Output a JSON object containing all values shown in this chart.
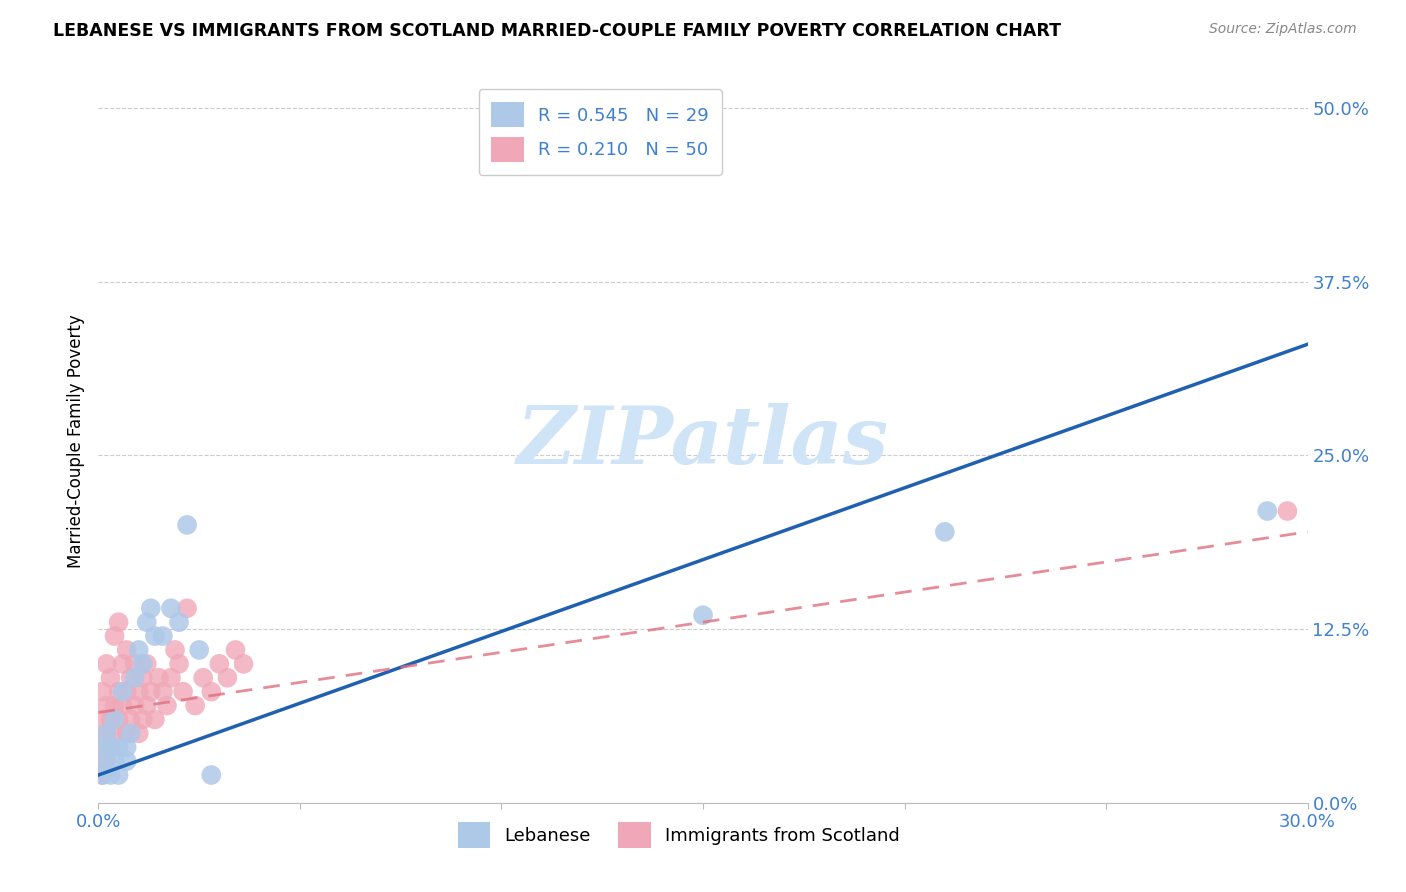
{
  "title": "LEBANESE VS IMMIGRANTS FROM SCOTLAND MARRIED-COUPLE FAMILY POVERTY CORRELATION CHART",
  "source": "Source: ZipAtlas.com",
  "ylabel_label": "Married-Couple Family Poverty",
  "right_yticks": [
    0.0,
    0.125,
    0.25,
    0.375,
    0.5
  ],
  "right_ytick_labels": [
    "0.0%",
    "12.5%",
    "25.0%",
    "37.5%",
    "50.0%"
  ],
  "xmin": 0.0,
  "xmax": 0.3,
  "ymin": 0.0,
  "ymax": 0.52,
  "legend_r1": "R = 0.545",
  "legend_n1": "N = 29",
  "legend_r2": "R = 0.210",
  "legend_n2": "N = 50",
  "legend_label1": "Lebanese",
  "legend_label2": "Immigrants from Scotland",
  "blue_color": "#aec8e8",
  "pink_color": "#f0a8b8",
  "blue_line_color": "#2060b0",
  "pink_line_color": "#e07080",
  "text_color": "#4080d0",
  "watermark_color": "#d0e4f8",
  "blue_x": [
    0.001,
    0.001,
    0.002,
    0.002,
    0.003,
    0.003,
    0.004,
    0.004,
    0.005,
    0.005,
    0.006,
    0.007,
    0.007,
    0.008,
    0.009,
    0.01,
    0.011,
    0.012,
    0.013,
    0.014,
    0.016,
    0.018,
    0.02,
    0.022,
    0.025,
    0.028,
    0.15,
    0.21,
    0.29
  ],
  "blue_y": [
    0.02,
    0.04,
    0.03,
    0.05,
    0.02,
    0.04,
    0.06,
    0.03,
    0.04,
    0.02,
    0.08,
    0.04,
    0.03,
    0.05,
    0.09,
    0.11,
    0.1,
    0.13,
    0.14,
    0.12,
    0.12,
    0.14,
    0.13,
    0.2,
    0.11,
    0.02,
    0.135,
    0.195,
    0.21
  ],
  "pink_x": [
    0.001,
    0.001,
    0.001,
    0.001,
    0.002,
    0.002,
    0.002,
    0.002,
    0.003,
    0.003,
    0.003,
    0.004,
    0.004,
    0.004,
    0.005,
    0.005,
    0.005,
    0.006,
    0.006,
    0.007,
    0.007,
    0.007,
    0.008,
    0.008,
    0.009,
    0.009,
    0.01,
    0.01,
    0.011,
    0.011,
    0.012,
    0.012,
    0.013,
    0.014,
    0.015,
    0.016,
    0.017,
    0.018,
    0.019,
    0.02,
    0.021,
    0.022,
    0.024,
    0.026,
    0.028,
    0.03,
    0.032,
    0.034,
    0.036,
    0.295
  ],
  "pink_y": [
    0.02,
    0.04,
    0.06,
    0.08,
    0.03,
    0.05,
    0.07,
    0.1,
    0.04,
    0.06,
    0.09,
    0.05,
    0.07,
    0.12,
    0.06,
    0.08,
    0.13,
    0.07,
    0.1,
    0.05,
    0.08,
    0.11,
    0.06,
    0.09,
    0.07,
    0.1,
    0.05,
    0.08,
    0.06,
    0.09,
    0.07,
    0.1,
    0.08,
    0.06,
    0.09,
    0.08,
    0.07,
    0.09,
    0.11,
    0.1,
    0.08,
    0.14,
    0.07,
    0.09,
    0.08,
    0.1,
    0.09,
    0.11,
    0.1,
    0.21
  ],
  "blue_line_x0": 0.0,
  "blue_line_x1": 0.3,
  "blue_line_y0": 0.02,
  "blue_line_y1": 0.33,
  "pink_line_x0": 0.0,
  "pink_line_x1": 0.3,
  "pink_line_y0": 0.065,
  "pink_line_y1": 0.195
}
